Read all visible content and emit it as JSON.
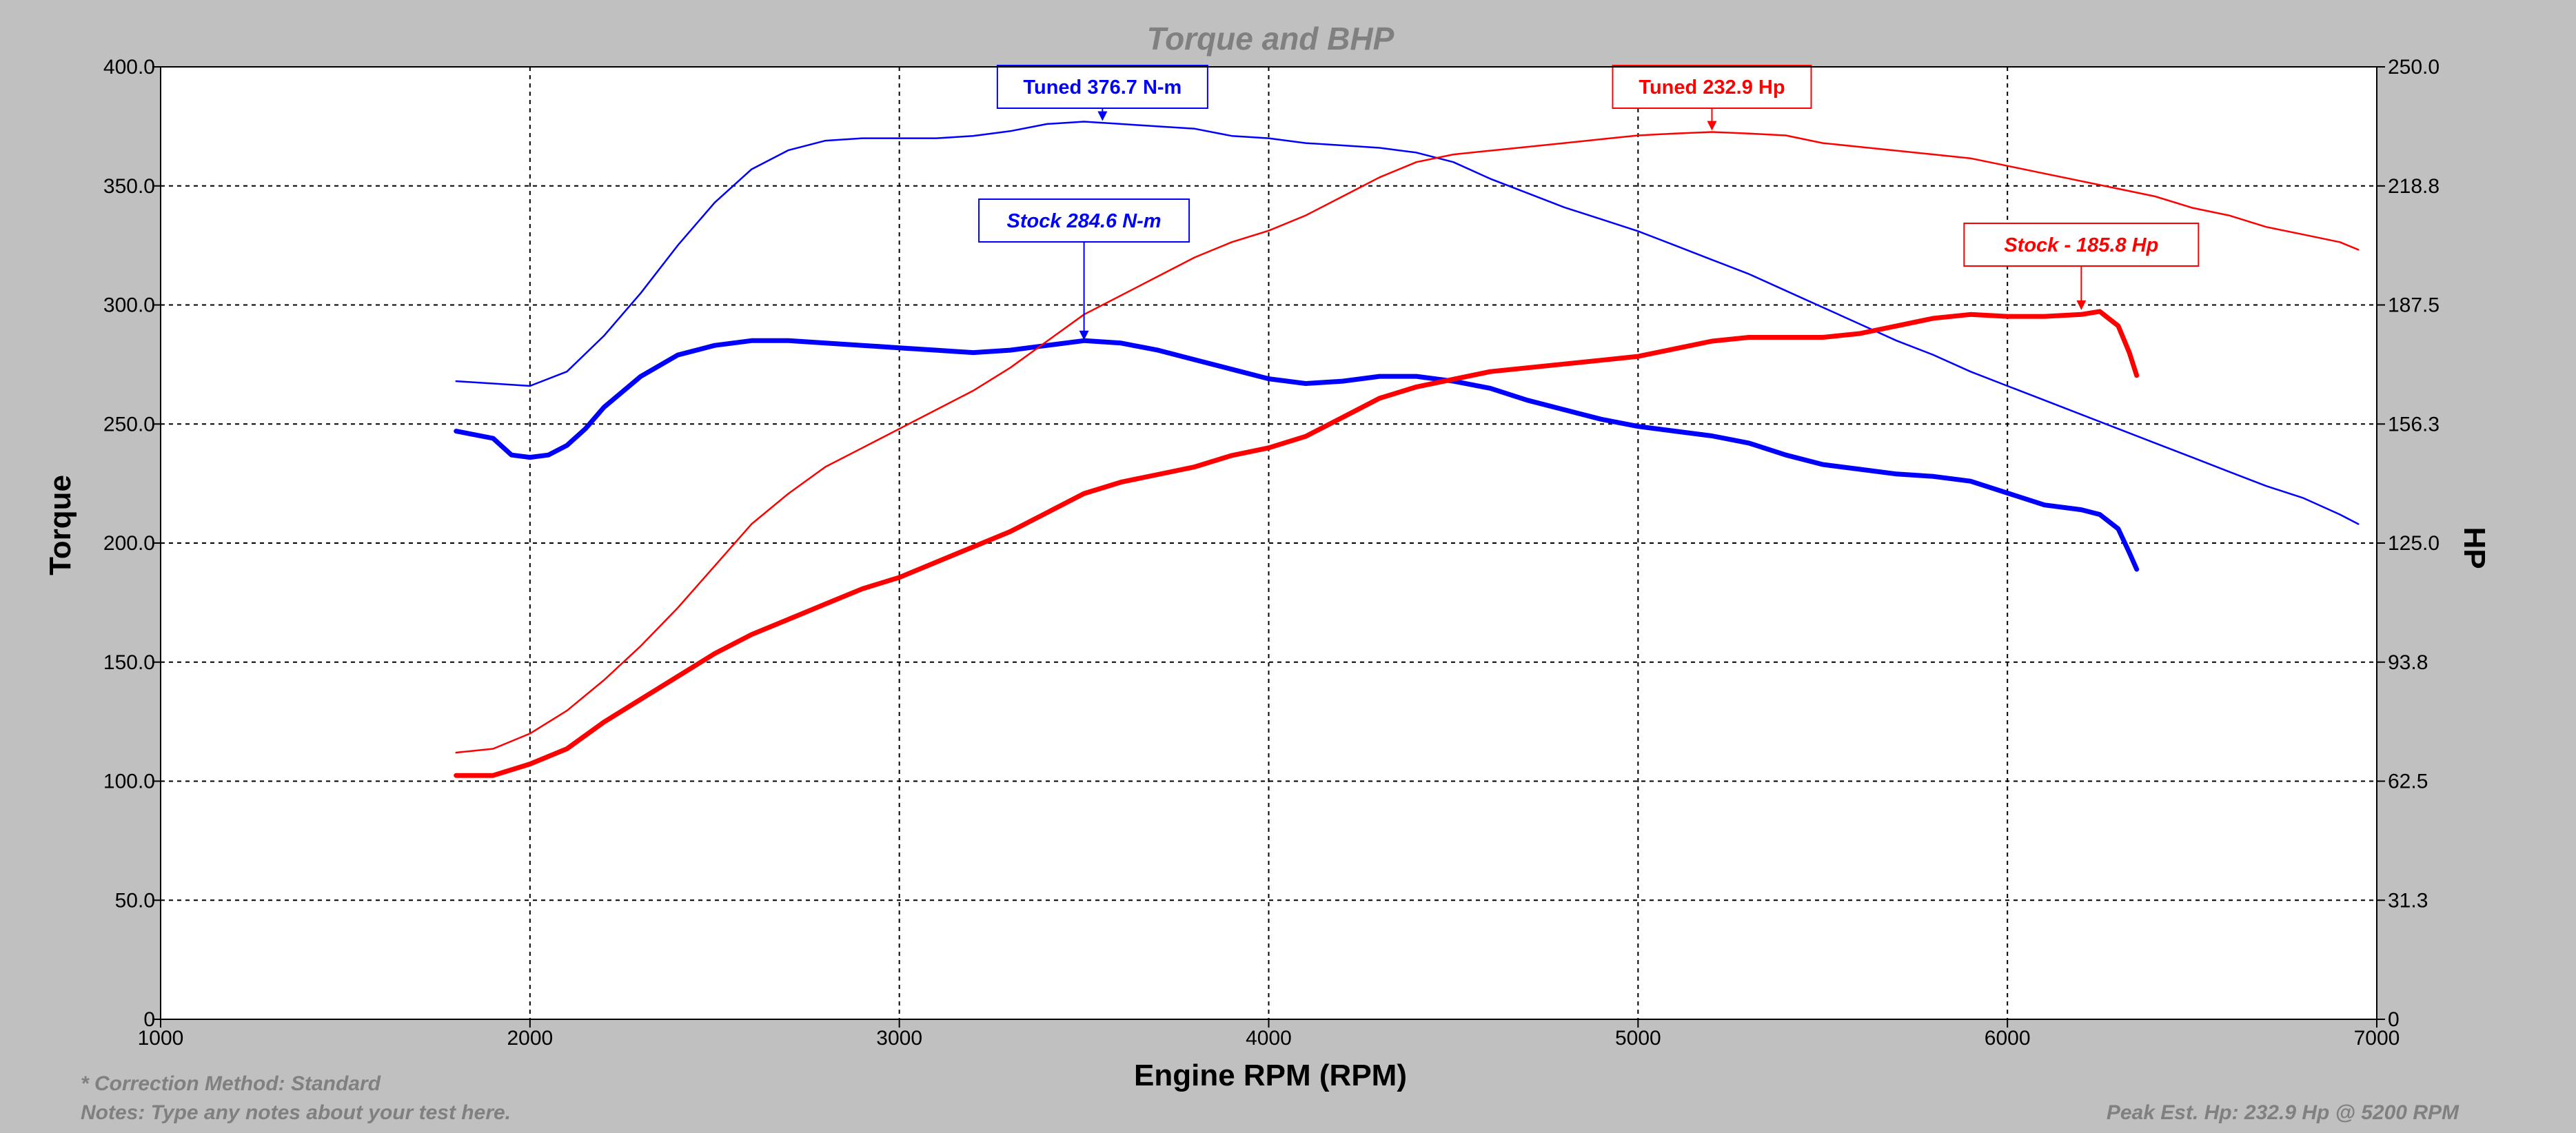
{
  "chart_data": {
    "type": "line",
    "title": "Torque and BHP",
    "xlabel": "Engine RPM (RPM)",
    "ylabel_left": "Torque",
    "ylabel_right": "HP",
    "xlim": [
      1000,
      7000
    ],
    "ylim_left": [
      0,
      400
    ],
    "ylim_right": [
      0,
      250
    ],
    "grid": true,
    "x_ticks": [
      "1000",
      "2000",
      "3000",
      "4000",
      "5000",
      "6000",
      "7000"
    ],
    "y_left_ticks": [
      "0",
      "50.0",
      "100.0",
      "150.0",
      "200.0",
      "250.0",
      "300.0",
      "350.0",
      "400.0"
    ],
    "y_right_ticks": [
      "0",
      "31.3",
      "62.5",
      "93.8",
      "125.0",
      "156.3",
      "187.5",
      "218.8",
      "250.0"
    ],
    "series": [
      {
        "key": "tuned_torque",
        "axis": "left",
        "color": "#0000ff",
        "weight": "thin",
        "points": [
          [
            1800,
            268
          ],
          [
            1900,
            267
          ],
          [
            2000,
            266
          ],
          [
            2100,
            272
          ],
          [
            2200,
            287
          ],
          [
            2300,
            305
          ],
          [
            2400,
            325
          ],
          [
            2500,
            343
          ],
          [
            2600,
            357
          ],
          [
            2700,
            365
          ],
          [
            2800,
            369
          ],
          [
            2900,
            370
          ],
          [
            3000,
            370
          ],
          [
            3100,
            370
          ],
          [
            3200,
            371
          ],
          [
            3300,
            373
          ],
          [
            3400,
            376
          ],
          [
            3500,
            377
          ],
          [
            3600,
            376
          ],
          [
            3700,
            375
          ],
          [
            3800,
            374
          ],
          [
            3900,
            371
          ],
          [
            4000,
            370
          ],
          [
            4100,
            368
          ],
          [
            4200,
            367
          ],
          [
            4300,
            366
          ],
          [
            4400,
            364
          ],
          [
            4500,
            360
          ],
          [
            4600,
            353
          ],
          [
            4700,
            347
          ],
          [
            4800,
            341
          ],
          [
            4900,
            336
          ],
          [
            5000,
            331
          ],
          [
            5100,
            325
          ],
          [
            5200,
            319
          ],
          [
            5300,
            313
          ],
          [
            5400,
            306
          ],
          [
            5500,
            299
          ],
          [
            5600,
            292
          ],
          [
            5700,
            285
          ],
          [
            5800,
            279
          ],
          [
            5900,
            272
          ],
          [
            6000,
            266
          ],
          [
            6100,
            260
          ],
          [
            6200,
            254
          ],
          [
            6300,
            248
          ],
          [
            6400,
            242
          ],
          [
            6500,
            236
          ],
          [
            6600,
            230
          ],
          [
            6700,
            224
          ],
          [
            6800,
            219
          ],
          [
            6900,
            212
          ],
          [
            6950,
            208
          ]
        ]
      },
      {
        "key": "stock_torque",
        "axis": "left",
        "color": "#0000ff",
        "weight": "thick",
        "points": [
          [
            1800,
            247
          ],
          [
            1900,
            244
          ],
          [
            1950,
            237
          ],
          [
            2000,
            236
          ],
          [
            2050,
            237
          ],
          [
            2100,
            241
          ],
          [
            2150,
            248
          ],
          [
            2200,
            257
          ],
          [
            2300,
            270
          ],
          [
            2400,
            279
          ],
          [
            2500,
            283
          ],
          [
            2600,
            285
          ],
          [
            2700,
            285
          ],
          [
            2800,
            284
          ],
          [
            2900,
            283
          ],
          [
            3000,
            282
          ],
          [
            3100,
            281
          ],
          [
            3200,
            280
          ],
          [
            3300,
            281
          ],
          [
            3400,
            283
          ],
          [
            3500,
            285
          ],
          [
            3600,
            284
          ],
          [
            3700,
            281
          ],
          [
            3800,
            277
          ],
          [
            3900,
            273
          ],
          [
            4000,
            269
          ],
          [
            4100,
            267
          ],
          [
            4200,
            268
          ],
          [
            4300,
            270
          ],
          [
            4400,
            270
          ],
          [
            4500,
            268
          ],
          [
            4600,
            265
          ],
          [
            4700,
            260
          ],
          [
            4800,
            256
          ],
          [
            4900,
            252
          ],
          [
            5000,
            249
          ],
          [
            5100,
            247
          ],
          [
            5200,
            245
          ],
          [
            5300,
            242
          ],
          [
            5400,
            237
          ],
          [
            5500,
            233
          ],
          [
            5600,
            231
          ],
          [
            5700,
            229
          ],
          [
            5800,
            228
          ],
          [
            5900,
            226
          ],
          [
            6000,
            221
          ],
          [
            6100,
            216
          ],
          [
            6200,
            214
          ],
          [
            6250,
            212
          ],
          [
            6300,
            206
          ],
          [
            6330,
            196
          ],
          [
            6350,
            189
          ]
        ]
      },
      {
        "key": "tuned_hp",
        "axis": "right",
        "color": "#ff0000",
        "weight": "thin",
        "points": [
          [
            1800,
            70
          ],
          [
            1900,
            71
          ],
          [
            2000,
            75
          ],
          [
            2100,
            81
          ],
          [
            2200,
            89
          ],
          [
            2300,
            98
          ],
          [
            2400,
            108
          ],
          [
            2500,
            119
          ],
          [
            2600,
            130
          ],
          [
            2700,
            138
          ],
          [
            2800,
            145
          ],
          [
            2900,
            150
          ],
          [
            3000,
            155
          ],
          [
            3100,
            160
          ],
          [
            3200,
            165
          ],
          [
            3300,
            171
          ],
          [
            3400,
            178
          ],
          [
            3500,
            185
          ],
          [
            3600,
            190
          ],
          [
            3700,
            195
          ],
          [
            3800,
            200
          ],
          [
            3900,
            204
          ],
          [
            4000,
            207
          ],
          [
            4100,
            211
          ],
          [
            4200,
            216
          ],
          [
            4300,
            221
          ],
          [
            4400,
            225
          ],
          [
            4500,
            227
          ],
          [
            4600,
            228
          ],
          [
            4700,
            229
          ],
          [
            4800,
            230
          ],
          [
            4900,
            231
          ],
          [
            5000,
            232
          ],
          [
            5100,
            232.5
          ],
          [
            5200,
            232.9
          ],
          [
            5300,
            232.5
          ],
          [
            5400,
            232
          ],
          [
            5500,
            230
          ],
          [
            5600,
            229
          ],
          [
            5700,
            228
          ],
          [
            5800,
            227
          ],
          [
            5900,
            226
          ],
          [
            6000,
            224
          ],
          [
            6100,
            222
          ],
          [
            6200,
            220
          ],
          [
            6300,
            218
          ],
          [
            6400,
            216
          ],
          [
            6500,
            213
          ],
          [
            6600,
            211
          ],
          [
            6700,
            208
          ],
          [
            6800,
            206
          ],
          [
            6900,
            204
          ],
          [
            6950,
            202
          ]
        ]
      },
      {
        "key": "stock_hp",
        "axis": "right",
        "color": "#ff0000",
        "weight": "thick",
        "points": [
          [
            1800,
            64
          ],
          [
            1900,
            64
          ],
          [
            2000,
            67
          ],
          [
            2100,
            71
          ],
          [
            2200,
            78
          ],
          [
            2300,
            84
          ],
          [
            2400,
            90
          ],
          [
            2500,
            96
          ],
          [
            2600,
            101
          ],
          [
            2700,
            105
          ],
          [
            2800,
            109
          ],
          [
            2900,
            113
          ],
          [
            3000,
            116
          ],
          [
            3100,
            120
          ],
          [
            3200,
            124
          ],
          [
            3300,
            128
          ],
          [
            3400,
            133
          ],
          [
            3500,
            138
          ],
          [
            3600,
            141
          ],
          [
            3700,
            143
          ],
          [
            3800,
            145
          ],
          [
            3900,
            148
          ],
          [
            4000,
            150
          ],
          [
            4100,
            153
          ],
          [
            4200,
            158
          ],
          [
            4300,
            163
          ],
          [
            4400,
            166
          ],
          [
            4500,
            168
          ],
          [
            4600,
            170
          ],
          [
            4700,
            171
          ],
          [
            4800,
            172
          ],
          [
            4900,
            173
          ],
          [
            5000,
            174
          ],
          [
            5100,
            176
          ],
          [
            5200,
            178
          ],
          [
            5300,
            179
          ],
          [
            5400,
            179
          ],
          [
            5500,
            179
          ],
          [
            5600,
            180
          ],
          [
            5700,
            182
          ],
          [
            5800,
            184
          ],
          [
            5900,
            185
          ],
          [
            6000,
            184.5
          ],
          [
            6100,
            184.5
          ],
          [
            6200,
            185
          ],
          [
            6250,
            185.8
          ],
          [
            6300,
            182
          ],
          [
            6330,
            175
          ],
          [
            6350,
            169
          ]
        ]
      }
    ],
    "annotations": [
      {
        "label": "Tuned 376.7 N-m",
        "axis": "left",
        "x": 3550,
        "y": 376.7,
        "color": "#0000ff",
        "italic": false
      },
      {
        "label": "Stock 284.6 N-m",
        "axis": "left",
        "x": 3500,
        "y": 284.6,
        "color": "#0000ff",
        "italic": true
      },
      {
        "label": "Tuned 232.9 Hp",
        "axis": "right",
        "x": 5200,
        "y": 232.9,
        "color": "#ff0000",
        "italic": false
      },
      {
        "label": "Stock -  185.8 Hp",
        "axis": "right",
        "x": 6200,
        "y": 185.8,
        "color": "#ff0000",
        "italic": true
      }
    ]
  },
  "footer": {
    "correction": "* Correction Method: Standard",
    "notes": "Notes: Type any notes about your test here.",
    "peak": "Peak Est. Hp: 232.9 Hp @ 5200 RPM"
  }
}
